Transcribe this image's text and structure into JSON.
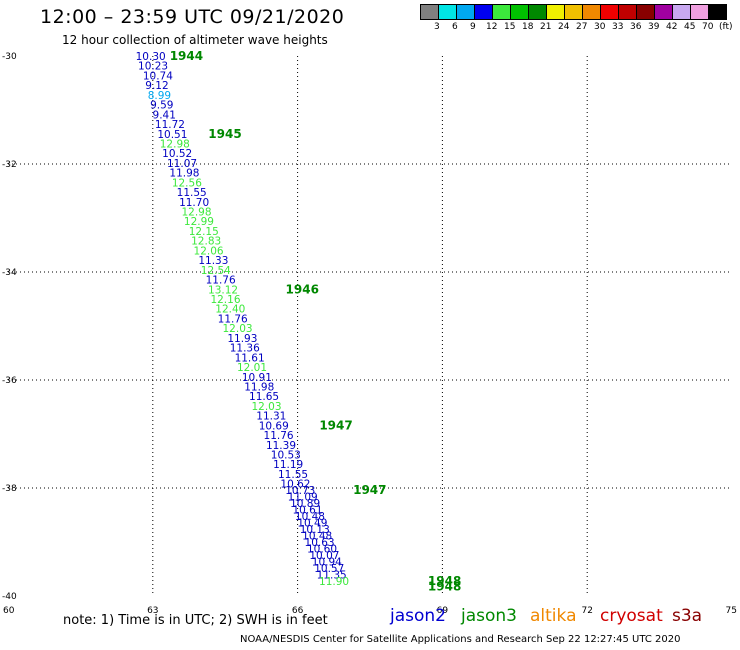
{
  "header": {
    "title": "12:00 – 23:59 UTC 09/21/2020",
    "subtitle": "12 hour collection of altimeter wave heights"
  },
  "colorscale": {
    "unit": "(ft)",
    "colors": [
      "#808080",
      "#00e5e5",
      "#00a8f0",
      "#0000f0",
      "#3ce83c",
      "#00c000",
      "#008800",
      "#f0f000",
      "#f0c000",
      "#f08800",
      "#f00000",
      "#c00000",
      "#880000",
      "#a000a0",
      "#c8a8f0",
      "#f0a0e0",
      "#000000"
    ],
    "labels": [
      "3",
      "6",
      "9",
      "12",
      "15",
      "18",
      "21",
      "24",
      "27",
      "30",
      "33",
      "36",
      "39",
      "42",
      "45",
      "70"
    ]
  },
  "chart_data": {
    "type": "scatter",
    "title": "",
    "xlabel": "",
    "ylabel": "",
    "xlim": [
      60,
      75
    ],
    "ylim": [
      -40,
      -30
    ],
    "xticks": [
      "60",
      "63",
      "66",
      "69",
      "72",
      "75"
    ],
    "yticks": [
      "-30",
      "-32",
      "-34",
      "-36",
      "-38",
      "-40"
    ],
    "grid": true,
    "points": [
      {
        "lon": 63.1,
        "lat": -30.0,
        "v": "10.30",
        "c": "#0000c0"
      },
      {
        "lon": 63.15,
        "lat": -30.18,
        "v": "10.23",
        "c": "#0000c0"
      },
      {
        "lon": 63.25,
        "lat": -30.36,
        "v": "10.74",
        "c": "#0000c0"
      },
      {
        "lon": 63.3,
        "lat": -30.54,
        "v": "9.12",
        "c": "#0000c0"
      },
      {
        "lon": 63.35,
        "lat": -30.72,
        "v": "8.99",
        "c": "#00a8f0"
      },
      {
        "lon": 63.4,
        "lat": -30.9,
        "v": "9.59",
        "c": "#0000c0"
      },
      {
        "lon": 63.45,
        "lat": -31.08,
        "v": "9.41",
        "c": "#0000c0"
      },
      {
        "lon": 63.5,
        "lat": -31.26,
        "v": "11.72",
        "c": "#0000c0"
      },
      {
        "lon": 63.55,
        "lat": -31.44,
        "v": "10.51",
        "c": "#0000c0"
      },
      {
        "lon": 63.6,
        "lat": -31.62,
        "v": "12.98",
        "c": "#3ce83c"
      },
      {
        "lon": 63.65,
        "lat": -31.8,
        "v": "10.52",
        "c": "#0000c0"
      },
      {
        "lon": 63.75,
        "lat": -31.98,
        "v": "11.07",
        "c": "#0000c0"
      },
      {
        "lon": 63.8,
        "lat": -32.16,
        "v": "11.98",
        "c": "#0000c0"
      },
      {
        "lon": 63.85,
        "lat": -32.34,
        "v": "12.56",
        "c": "#3ce83c"
      },
      {
        "lon": 63.95,
        "lat": -32.52,
        "v": "11.55",
        "c": "#0000c0"
      },
      {
        "lon": 64.0,
        "lat": -32.7,
        "v": "11.70",
        "c": "#0000c0"
      },
      {
        "lon": 64.05,
        "lat": -32.88,
        "v": "12.98",
        "c": "#3ce83c"
      },
      {
        "lon": 64.1,
        "lat": -33.06,
        "v": "12.99",
        "c": "#3ce83c"
      },
      {
        "lon": 64.2,
        "lat": -33.24,
        "v": "12.15",
        "c": "#3ce83c"
      },
      {
        "lon": 64.25,
        "lat": -33.42,
        "v": "12.83",
        "c": "#3ce83c"
      },
      {
        "lon": 64.3,
        "lat": -33.6,
        "v": "12.06",
        "c": "#3ce83c"
      },
      {
        "lon": 64.4,
        "lat": -33.78,
        "v": "11.33",
        "c": "#0000c0"
      },
      {
        "lon": 64.45,
        "lat": -33.96,
        "v": "12.54",
        "c": "#3ce83c"
      },
      {
        "lon": 64.55,
        "lat": -34.14,
        "v": "11.76",
        "c": "#0000c0"
      },
      {
        "lon": 64.6,
        "lat": -34.32,
        "v": "13.12",
        "c": "#3ce83c"
      },
      {
        "lon": 64.65,
        "lat": -34.5,
        "v": "12.16",
        "c": "#3ce83c"
      },
      {
        "lon": 64.75,
        "lat": -34.68,
        "v": "12.40",
        "c": "#3ce83c"
      },
      {
        "lon": 64.8,
        "lat": -34.86,
        "v": "11.76",
        "c": "#0000c0"
      },
      {
        "lon": 64.9,
        "lat": -35.04,
        "v": "12.03",
        "c": "#3ce83c"
      },
      {
        "lon": 65.0,
        "lat": -35.22,
        "v": "11.93",
        "c": "#0000c0"
      },
      {
        "lon": 65.05,
        "lat": -35.4,
        "v": "11.36",
        "c": "#0000c0"
      },
      {
        "lon": 65.15,
        "lat": -35.58,
        "v": "11.61",
        "c": "#0000c0"
      },
      {
        "lon": 65.2,
        "lat": -35.76,
        "v": "12.01",
        "c": "#3ce83c"
      },
      {
        "lon": 65.3,
        "lat": -35.94,
        "v": "10.91",
        "c": "#0000c0"
      },
      {
        "lon": 65.35,
        "lat": -36.12,
        "v": "11.98",
        "c": "#0000c0"
      },
      {
        "lon": 65.45,
        "lat": -36.3,
        "v": "11.65",
        "c": "#0000c0"
      },
      {
        "lon": 65.5,
        "lat": -36.48,
        "v": "12.03",
        "c": "#3ce83c"
      },
      {
        "lon": 65.6,
        "lat": -36.66,
        "v": "11.31",
        "c": "#0000c0"
      },
      {
        "lon": 65.65,
        "lat": -36.84,
        "v": "10.69",
        "c": "#0000c0"
      },
      {
        "lon": 65.75,
        "lat": -37.02,
        "v": "11.76",
        "c": "#0000c0"
      },
      {
        "lon": 65.8,
        "lat": -37.2,
        "v": "11.39",
        "c": "#0000c0"
      },
      {
        "lon": 65.9,
        "lat": -37.38,
        "v": "10.53",
        "c": "#0000c0"
      },
      {
        "lon": 65.95,
        "lat": -37.56,
        "v": "11.19",
        "c": "#0000c0"
      },
      {
        "lon": 66.05,
        "lat": -37.74,
        "v": "11.55",
        "c": "#0000c0"
      },
      {
        "lon": 66.1,
        "lat": -37.92,
        "v": "10.62",
        "c": "#0000c0"
      },
      {
        "lon": 66.2,
        "lat": -38.04,
        "v": "10.73",
        "c": "#0000c0"
      },
      {
        "lon": 66.25,
        "lat": -38.16,
        "v": "11.09",
        "c": "#0000c0"
      },
      {
        "lon": 66.3,
        "lat": -38.28,
        "v": "10.89",
        "c": "#0000c0"
      },
      {
        "lon": 66.35,
        "lat": -38.4,
        "v": "10.61",
        "c": "#0000c0"
      },
      {
        "lon": 66.4,
        "lat": -38.52,
        "v": "10.48",
        "c": "#0000c0"
      },
      {
        "lon": 66.45,
        "lat": -38.64,
        "v": "10.49",
        "c": "#0000c0"
      },
      {
        "lon": 66.5,
        "lat": -38.76,
        "v": "10.13",
        "c": "#0000c0"
      },
      {
        "lon": 66.55,
        "lat": -38.88,
        "v": "10.48",
        "c": "#0000c0"
      },
      {
        "lon": 66.6,
        "lat": -39.0,
        "v": "10.63",
        "c": "#0000c0"
      },
      {
        "lon": 66.65,
        "lat": -39.12,
        "v": "10.60",
        "c": "#0000c0"
      },
      {
        "lon": 66.7,
        "lat": -39.24,
        "v": "10.07",
        "c": "#0000c0"
      },
      {
        "lon": 66.75,
        "lat": -39.36,
        "v": "10.94",
        "c": "#0000c0"
      },
      {
        "lon": 66.8,
        "lat": -39.48,
        "v": "10.57",
        "c": "#0000c0"
      },
      {
        "lon": 66.85,
        "lat": -39.6,
        "v": "11.35",
        "c": "#0000c0"
      },
      {
        "lon": 66.9,
        "lat": -39.72,
        "v": "11.90",
        "c": "#3ce83c"
      }
    ],
    "time_labels": [
      {
        "lon": 63.35,
        "lat": -30.0,
        "t": "1944"
      },
      {
        "lon": 64.15,
        "lat": -31.44,
        "t": "1945"
      },
      {
        "lon": 65.75,
        "lat": -34.32,
        "t": "1946"
      },
      {
        "lon": 66.45,
        "lat": -36.84,
        "t": "1947"
      },
      {
        "lon": 67.15,
        "lat": -38.04,
        "t": "1947"
      },
      {
        "lon": 68.7,
        "lat": -39.72,
        "t": "1948"
      },
      {
        "lon": 68.7,
        "lat": -39.82,
        "t": "1948"
      }
    ]
  },
  "footer": {
    "note": "note:  1) Time is in UTC;  2) SWH is in feet",
    "satellites": [
      {
        "name": "jason2",
        "color": "#0000d0"
      },
      {
        "name": "jason3",
        "color": "#008800"
      },
      {
        "name": "altika",
        "color": "#f08800"
      },
      {
        "name": "cryosat",
        "color": "#d00000"
      },
      {
        "name": "s3a",
        "color": "#880000"
      }
    ],
    "credit": "NOAA/NESDIS Center for Satellite Applications and Research     Sep 22 12:27:45 UTC 2020"
  }
}
